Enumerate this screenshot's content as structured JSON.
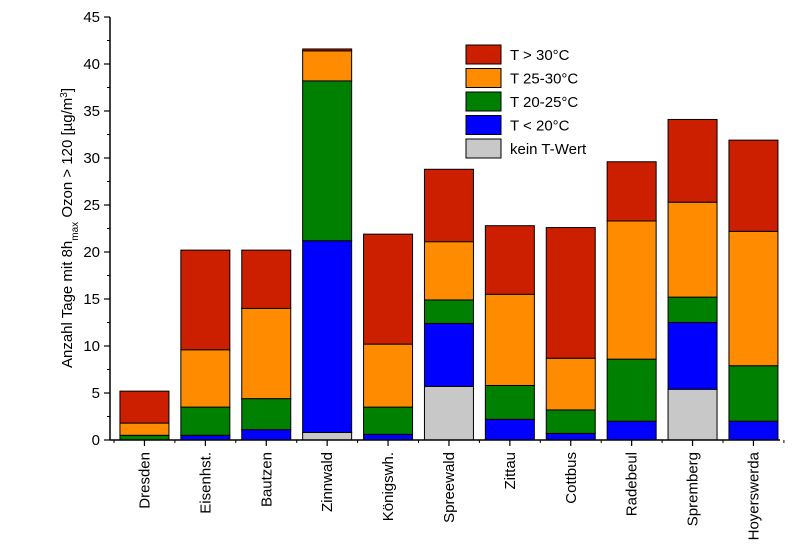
{
  "chart_data": {
    "type": "bar",
    "stacked": true,
    "categories": [
      "Dresden",
      "Eisenhst.",
      "Bautzen",
      "Zinnwald",
      "Königswh.",
      "Spreewald",
      "Zittau",
      "Cottbus",
      "Radebeul",
      "Spremberg",
      "Hoyerswerda"
    ],
    "series": [
      {
        "name": "kein T-Wert",
        "color": "#c8c8c8",
        "values": [
          0,
          0,
          0,
          0.8,
          0,
          5.7,
          0,
          0,
          0,
          5.4,
          0
        ]
      },
      {
        "name": "T < 20°C",
        "color": "#0000ff",
        "values": [
          0,
          0.5,
          1.1,
          20.4,
          0.6,
          6.7,
          2.2,
          0.7,
          2.0,
          7.1,
          2.0
        ]
      },
      {
        "name": "T 20-25°C",
        "color": "#008000",
        "values": [
          0.5,
          3.0,
          3.3,
          17.0,
          2.9,
          2.5,
          3.6,
          2.5,
          6.6,
          2.7,
          5.9
        ]
      },
      {
        "name": "T 25-30°C",
        "color": "#ff8c00",
        "values": [
          1.3,
          6.1,
          9.6,
          3.2,
          6.7,
          6.2,
          9.7,
          5.5,
          14.7,
          10.1,
          14.3
        ]
      },
      {
        "name": "T > 30°C",
        "color": "#cc1f00",
        "values": [
          3.4,
          10.6,
          6.2,
          0.2,
          11.7,
          7.7,
          7.3,
          13.9,
          6.3,
          8.8,
          9.7
        ]
      }
    ],
    "ylabel_parts": [
      "Anzahl Tage mit 8h",
      "max",
      " Ozon > 120 [µg/m",
      "3",
      "]"
    ],
    "xlabel": "",
    "ylim": [
      0,
      45
    ],
    "yticks": [
      0,
      5,
      10,
      15,
      20,
      25,
      30,
      35,
      40,
      45
    ],
    "legend_order": [
      "T > 30°C",
      "T 25-30°C",
      "T 20-25°C",
      "T < 20°C",
      "kein T-Wert"
    ],
    "legend_position": "top-right",
    "grid": false
  }
}
